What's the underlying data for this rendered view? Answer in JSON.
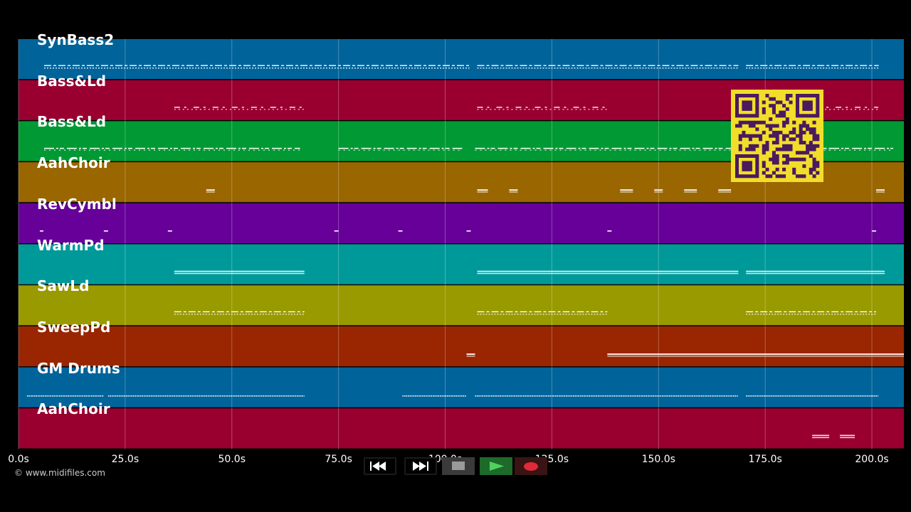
{
  "tracks": [
    {
      "name": "SynBass2",
      "color": "#00639a"
    },
    {
      "name": "Bass&Ld",
      "color": "#990030"
    },
    {
      "name": "Bass&Ld",
      "color": "#009933"
    },
    {
      "name": "AahChoir",
      "color": "#996600"
    },
    {
      "name": "RevCymbl",
      "color": "#660099"
    },
    {
      "name": "WarmPd",
      "color": "#009999"
    },
    {
      "name": "SawLd",
      "color": "#999900"
    },
    {
      "name": "SweepPd",
      "color": "#992600"
    },
    {
      "name": "GM Drums",
      "color": "#00639a"
    },
    {
      "name": "AahChoir",
      "color": "#990030"
    }
  ],
  "time_axis": {
    "unit": "s",
    "tick_labels": [
      "0.0s",
      "25.0s",
      "50.0s",
      "75.0s",
      "100.0s",
      "125.0s",
      "150.0s",
      "175.0s",
      "200.0s"
    ],
    "tick_values": [
      0,
      25,
      50,
      75,
      100,
      125,
      150,
      175,
      200
    ],
    "max_seconds": 207.5
  },
  "copyright": "© www.midifiles.com",
  "transport": {
    "rewind": "rewind-icon",
    "fast_forward": "fast-forward-icon",
    "stop": "stop-icon",
    "play": "play-icon",
    "record": "record-icon"
  },
  "qr_code": "qr-code",
  "note_activity": [
    {
      "track": 0,
      "segments": [
        [
          6,
          105.7
        ],
        [
          107.5,
          168.7
        ],
        [
          170.5,
          201.6
        ]
      ],
      "style": "dashed-double"
    },
    {
      "track": 1,
      "segments": [
        [
          36.5,
          67
        ],
        [
          107.5,
          138
        ],
        [
          187,
          201.5
        ]
      ],
      "style": "sparse"
    },
    {
      "track": 2,
      "segments": [
        [
          6,
          66
        ],
        [
          75,
          104
        ],
        [
          107,
          190
        ],
        [
          190,
          205
        ]
      ],
      "style": "wavy"
    },
    {
      "track": 3,
      "segments": [
        [
          44,
          46
        ],
        [
          107.5,
          110
        ],
        [
          115,
          117
        ],
        [
          141,
          144
        ],
        [
          149,
          151
        ],
        [
          156,
          159
        ],
        [
          164,
          167
        ],
        [
          201,
          203
        ]
      ],
      "style": "blips"
    },
    {
      "track": 4,
      "segments": [
        [
          5,
          5.5
        ],
        [
          20,
          21
        ],
        [
          35,
          36
        ],
        [
          74,
          75
        ],
        [
          89,
          90
        ],
        [
          105,
          106
        ],
        [
          138,
          139
        ],
        [
          200,
          201
        ]
      ],
      "style": "dots"
    },
    {
      "track": 5,
      "segments": [
        [
          36.5,
          67
        ],
        [
          107.5,
          168.7
        ],
        [
          170.5,
          203
        ]
      ],
      "style": "solid-double"
    },
    {
      "track": 6,
      "segments": [
        [
          36.5,
          67
        ],
        [
          107.5,
          138
        ],
        [
          170.5,
          201
        ]
      ],
      "style": "dashed-double"
    },
    {
      "track": 7,
      "segments": [
        [
          105,
          107
        ],
        [
          138,
          207.5
        ]
      ],
      "style": "blips"
    },
    {
      "track": 8,
      "segments": [
        [
          2,
          20
        ],
        [
          21,
          67
        ],
        [
          90,
          105
        ],
        [
          107,
          168.7
        ],
        [
          170.5,
          201.5
        ]
      ],
      "style": "dotted"
    },
    {
      "track": 9,
      "segments": [
        [
          186,
          190
        ],
        [
          192.5,
          196
        ]
      ],
      "style": "solid-double"
    }
  ]
}
